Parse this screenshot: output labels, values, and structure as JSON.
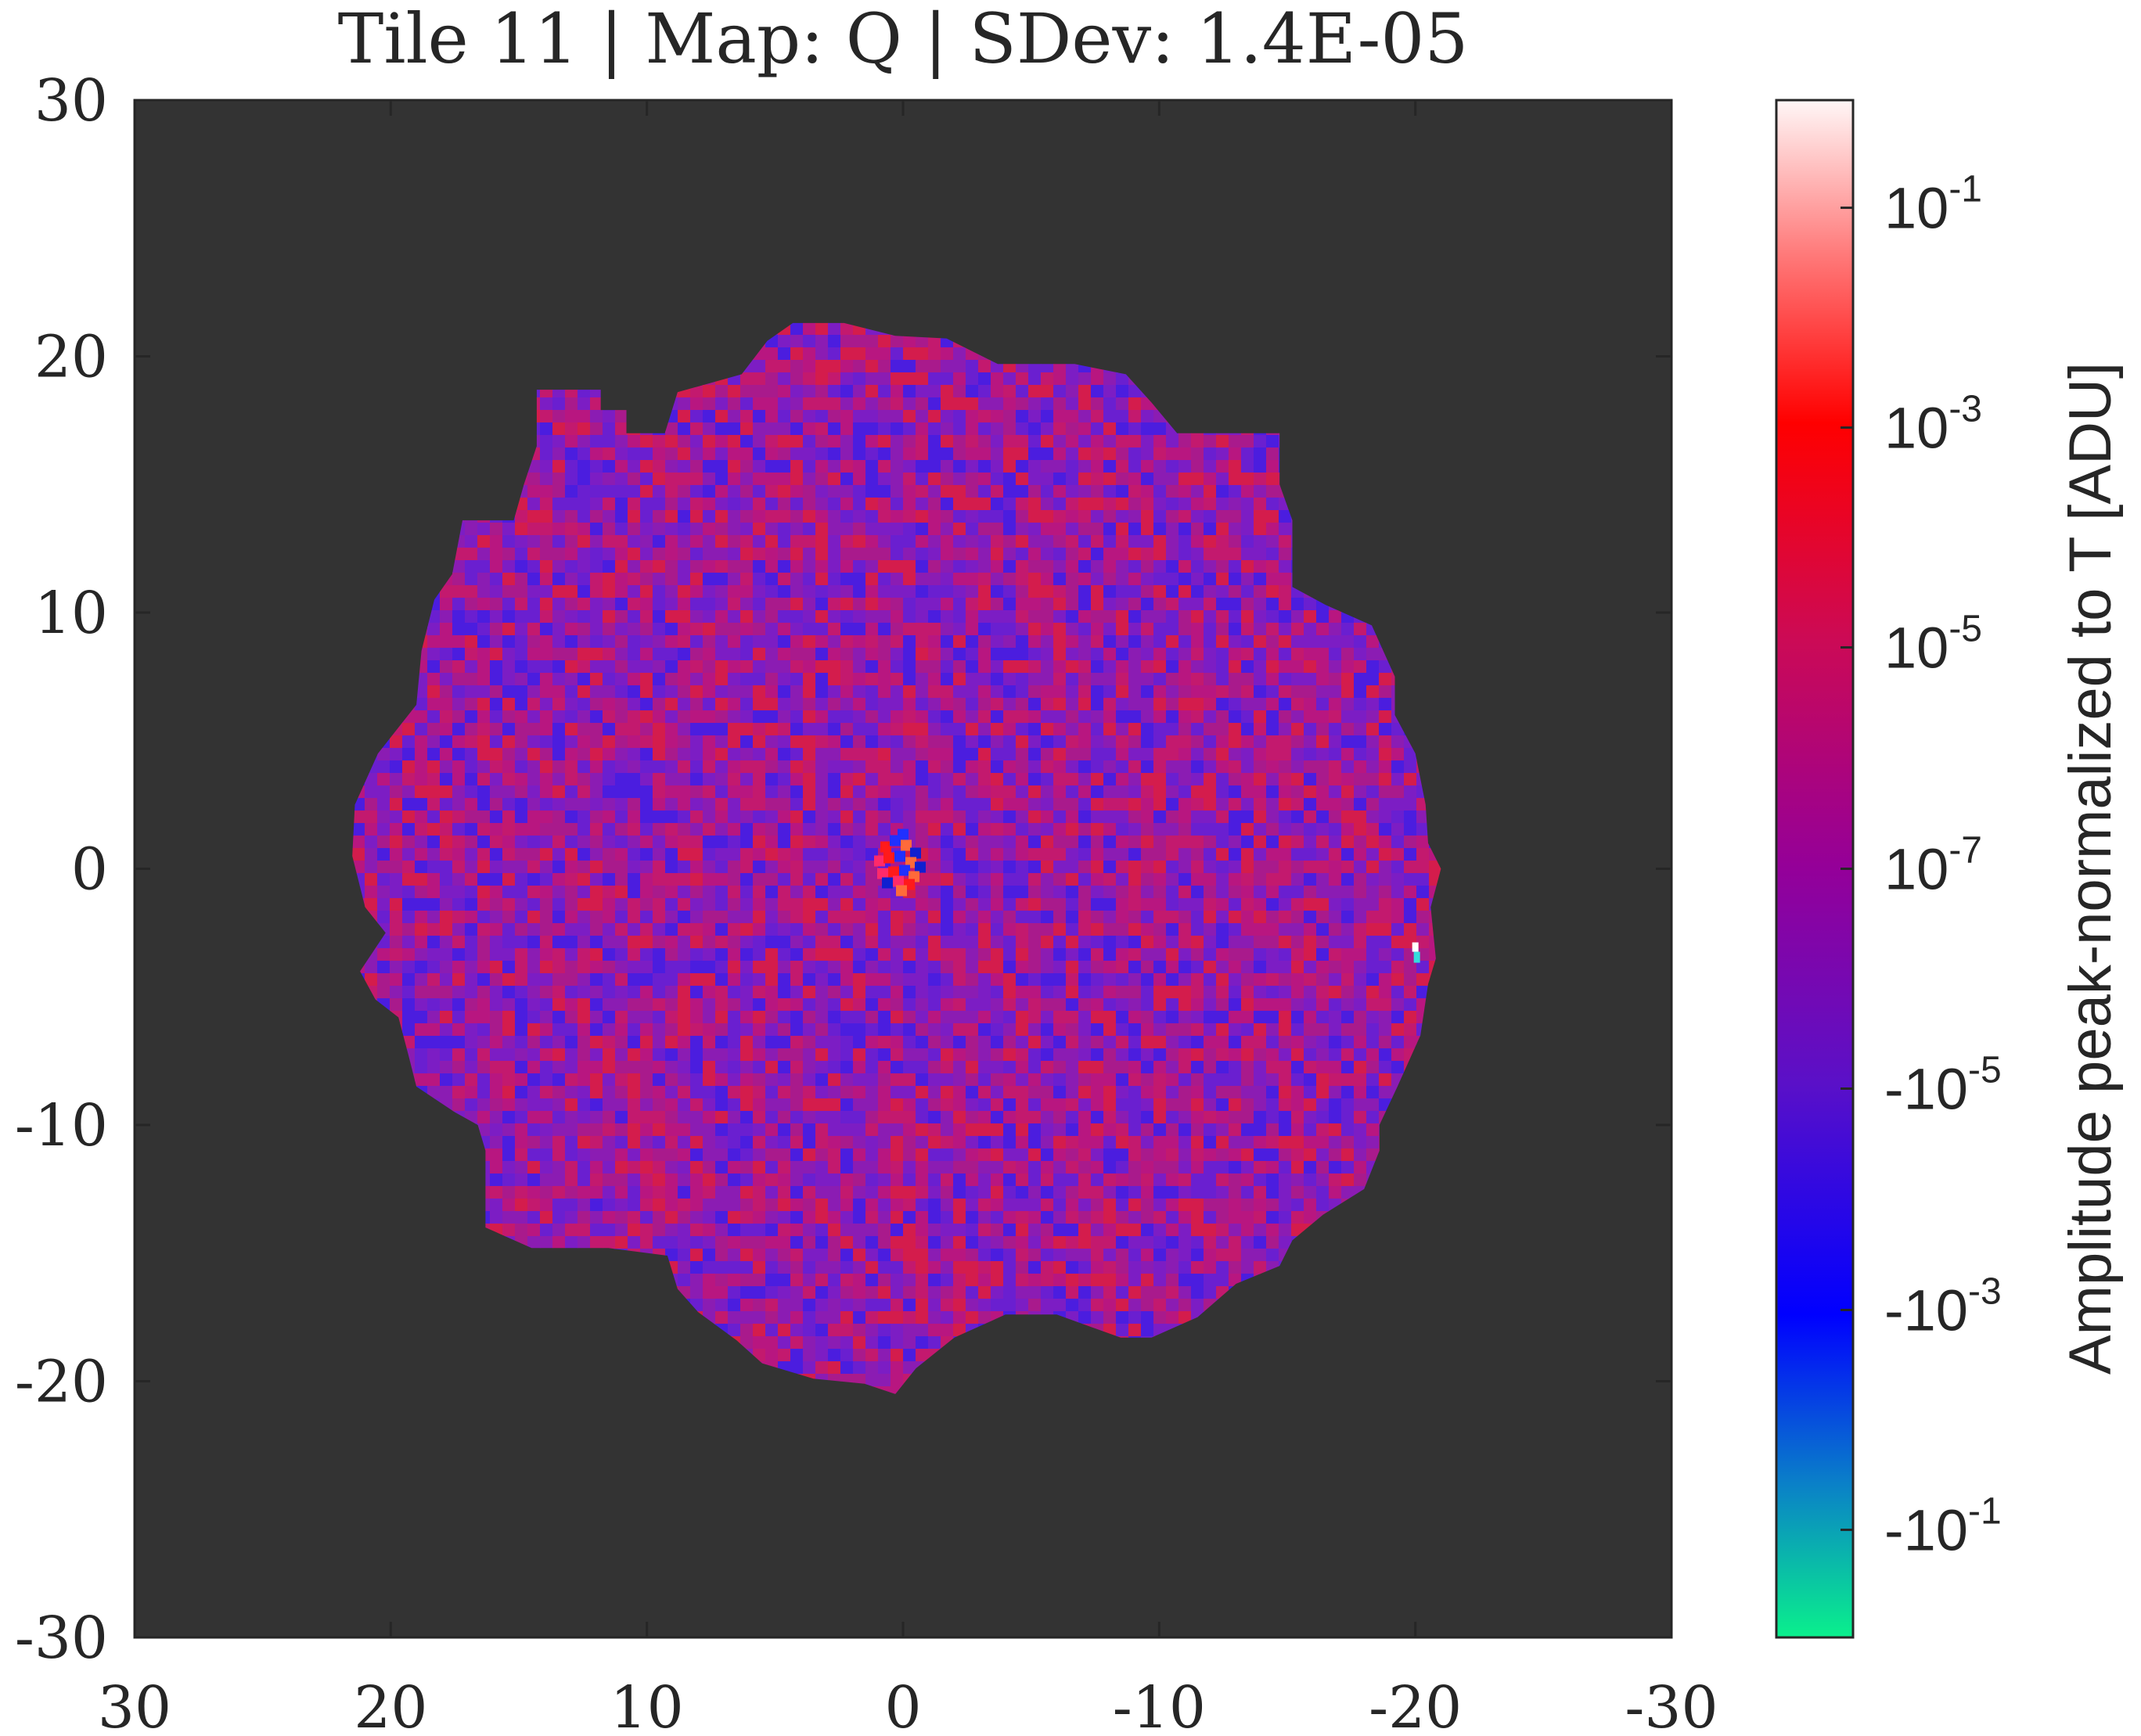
{
  "chart_data": {
    "type": "heatmap",
    "title": "Tile 11 | Map: Q | SDev: 1.4E-05",
    "x_ticks": [
      30,
      20,
      10,
      0,
      -10,
      -20,
      -30
    ],
    "x_tick_labels": [
      "30",
      "20",
      "10",
      "0",
      "-10",
      "-20",
      "-30"
    ],
    "xlim": [
      30,
      -30
    ],
    "y_ticks": [
      30,
      20,
      10,
      0,
      -10,
      -20,
      -30
    ],
    "y_tick_labels": [
      "30",
      "20",
      "10",
      "0",
      "-10",
      "-20",
      "-30"
    ],
    "ylim": [
      -30,
      30
    ],
    "xlabel": "",
    "ylabel": "",
    "background_color": "#333333",
    "map_region": {
      "boundary": [
        [
          14.3,
          18.7
        ],
        [
          11.8,
          18.7
        ],
        [
          11.8,
          17.9
        ],
        [
          10.8,
          17.9
        ],
        [
          10.8,
          17.0
        ],
        [
          9.3,
          17.0
        ],
        [
          8.8,
          18.6
        ],
        [
          6.3,
          19.3
        ],
        [
          5.3,
          20.6
        ],
        [
          4.3,
          21.3
        ],
        [
          2.3,
          21.3
        ],
        [
          0.3,
          20.8
        ],
        [
          -1.7,
          20.7
        ],
        [
          -3.7,
          19.7
        ],
        [
          -6.7,
          19.7
        ],
        [
          -8.7,
          19.3
        ],
        [
          -9.7,
          18.2
        ],
        [
          -10.7,
          17.0
        ],
        [
          -14.7,
          17.0
        ],
        [
          -14.7,
          15.0
        ],
        [
          -15.2,
          13.6
        ],
        [
          -15.2,
          11.0
        ],
        [
          -16.5,
          10.3
        ],
        [
          -18.3,
          9.5
        ],
        [
          -19.2,
          7.5
        ],
        [
          -19.2,
          6.0
        ],
        [
          -20.0,
          4.5
        ],
        [
          -20.4,
          2.5
        ],
        [
          -20.5,
          1.0
        ],
        [
          -21.0,
          0.0
        ],
        [
          -20.6,
          -1.5
        ],
        [
          -20.8,
          -3.5
        ],
        [
          -20.5,
          -4.5
        ],
        [
          -20.2,
          -6.5
        ],
        [
          -19.3,
          -8.5
        ],
        [
          -18.6,
          -10.0
        ],
        [
          -18.6,
          -11.0
        ],
        [
          -18.0,
          -12.5
        ],
        [
          -16.4,
          -13.5
        ],
        [
          -15.2,
          -14.5
        ],
        [
          -14.7,
          -15.5
        ],
        [
          -13.0,
          -16.2
        ],
        [
          -11.5,
          -17.5
        ],
        [
          -9.7,
          -18.3
        ],
        [
          -8.5,
          -18.3
        ],
        [
          -6.0,
          -17.4
        ],
        [
          -4.0,
          -17.4
        ],
        [
          -2.0,
          -18.3
        ],
        [
          -0.5,
          -19.5
        ],
        [
          0.3,
          -20.5
        ],
        [
          1.5,
          -20.1
        ],
        [
          3.5,
          -19.9
        ],
        [
          5.5,
          -19.3
        ],
        [
          6.5,
          -18.4
        ],
        [
          8.0,
          -17.3
        ],
        [
          8.8,
          -16.4
        ],
        [
          9.2,
          -15.1
        ],
        [
          11.5,
          -14.8
        ],
        [
          14.5,
          -14.8
        ],
        [
          16.3,
          -14.0
        ],
        [
          16.3,
          -11.0
        ],
        [
          16.6,
          -10.0
        ],
        [
          17.5,
          -9.5
        ],
        [
          19.0,
          -8.5
        ],
        [
          19.3,
          -7.3
        ],
        [
          19.7,
          -5.8
        ],
        [
          20.6,
          -5.1
        ],
        [
          21.2,
          -4.0
        ],
        [
          20.2,
          -2.5
        ],
        [
          21.0,
          -1.5
        ],
        [
          21.5,
          0.5
        ],
        [
          21.4,
          2.5
        ],
        [
          20.5,
          4.5
        ],
        [
          19.0,
          6.4
        ],
        [
          18.8,
          8.5
        ],
        [
          18.3,
          10.5
        ],
        [
          17.6,
          11.5
        ],
        [
          17.2,
          13.6
        ],
        [
          15.2,
          13.6
        ],
        [
          14.8,
          15.0
        ],
        [
          14.3,
          16.5
        ]
      ],
      "noise_colors": [
        "#6a1fd0",
        "#c3196e",
        "#8b1cb3",
        "#d41c4c",
        "#4b1ddf",
        "#a91a8c",
        "#7c1dc4",
        "#b81680"
      ],
      "central_feature": {
        "x": 0.0,
        "y": 0.0,
        "colors": [
          "#ff1a1a",
          "#2030ff",
          "#ff6a3a",
          "#1020d0",
          "#ff2a6a"
        ]
      },
      "outlier_pixel": {
        "x": -20.0,
        "y": -3.3,
        "colors": [
          "#ffffff",
          "#33dddd"
        ]
      }
    },
    "colorbar": {
      "label": "Amplitude peak-normalized to T [ADU]",
      "ticks": [
        {
          "base": "10",
          "exp": "-1"
        },
        {
          "base": "10",
          "exp": "-3"
        },
        {
          "base": "10",
          "exp": "-5"
        },
        {
          "base": "10",
          "exp": "-7"
        },
        {
          "base": "-10",
          "exp": "-5"
        },
        {
          "base": "-10",
          "exp": "-3"
        },
        {
          "base": "-10",
          "exp": "-1"
        }
      ],
      "tick_fractions": [
        0.07,
        0.213,
        0.356,
        0.5,
        0.643,
        0.787,
        0.93
      ],
      "color_stops": [
        {
          "pos": 0.0,
          "color": "#fff6f6"
        },
        {
          "pos": 0.1,
          "color": "#ff7a7a"
        },
        {
          "pos": 0.21,
          "color": "#ff0000"
        },
        {
          "pos": 0.35,
          "color": "#cc0a55"
        },
        {
          "pos": 0.5,
          "color": "#940099"
        },
        {
          "pos": 0.64,
          "color": "#5a10c8"
        },
        {
          "pos": 0.79,
          "color": "#0000ff"
        },
        {
          "pos": 0.9,
          "color": "#0a80c8"
        },
        {
          "pos": 1.0,
          "color": "#0af08c"
        }
      ]
    }
  }
}
